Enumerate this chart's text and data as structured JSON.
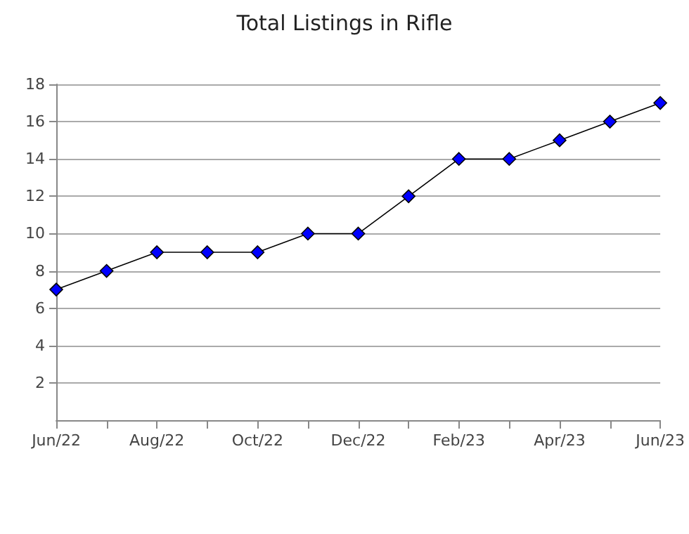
{
  "chart_data": {
    "type": "line",
    "title": "Total Listings in Rifle",
    "categories": [
      "Jun/22",
      null,
      "Aug/22",
      null,
      "Oct/22",
      null,
      "Dec/22",
      null,
      "Feb/23",
      null,
      "Apr/23",
      null,
      "Jun/23"
    ],
    "series": [
      {
        "color": "#0000ff",
        "values": [
          7,
          8,
          9,
          9,
          9,
          10,
          10,
          12,
          14,
          14,
          15,
          16,
          17
        ]
      }
    ],
    "ylim": [
      0,
      18
    ],
    "yticks": [
      2,
      4,
      6,
      8,
      10,
      12,
      14,
      16,
      18
    ],
    "grid": "y",
    "marker": "diamond",
    "line_style": "solid"
  }
}
